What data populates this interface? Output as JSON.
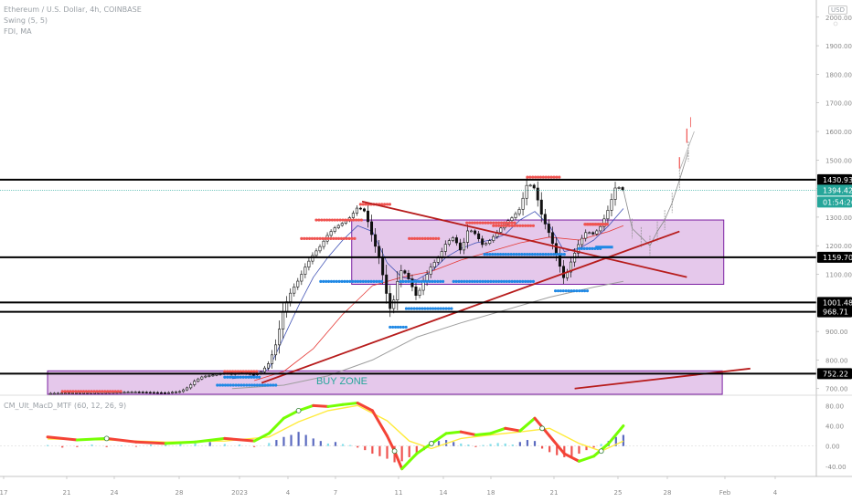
{
  "legend": {
    "symbol": "Ethereum / U.S. Dollar, 4h, COINBASE",
    "indicator1": "Swing (5, 5)",
    "indicator2": "FDI, MA",
    "macd": "CM_Ult_MacD_MTF (60, 12, 26, 9)"
  },
  "scale_badge": "USD",
  "price_axis_ticks": [
    "2000.00",
    "1900.00",
    "1800.00",
    "1700.00",
    "1600.00",
    "1500.00",
    "1400.00",
    "1300.00",
    "1200.00",
    "1100.00",
    "1000.00",
    "900.00",
    "800.00",
    "700.00"
  ],
  "macd_axis_ticks": [
    "80.00",
    "40.00",
    "0.00",
    "-40.00"
  ],
  "time_axis_ticks": [
    "17",
    "21",
    "24",
    "28",
    "2023",
    "4",
    "7",
    "11",
    "14",
    "18",
    "21",
    "25",
    "28",
    "Feb",
    "4"
  ],
  "level_labels": [
    {
      "value": "1430.93",
      "kind": "level"
    },
    {
      "value": "1394.42",
      "kind": "price"
    },
    {
      "value": "01:54:26",
      "kind": "timer"
    },
    {
      "value": "1159.70",
      "kind": "level"
    },
    {
      "value": "1001.48",
      "kind": "level"
    },
    {
      "value": "968.71",
      "kind": "level"
    },
    {
      "value": "752.22",
      "kind": "level"
    }
  ],
  "zone_label": "BUY ZONE",
  "colors": {
    "up": "#26a69a",
    "down": "#ef5350",
    "candle": "#111111",
    "zone_fill": "#e1bee7",
    "zone_stroke": "#7b1fa2",
    "trendline": "#b71c1c",
    "level": "#000000",
    "ma_fast": "#3f51b5",
    "ma_mid": "#e53935",
    "ma_slow": "#9e9e9e",
    "swing_high": "#ef5350",
    "swing_low": "#1e88e5",
    "macd_green": "#76ff03",
    "macd_red": "#f44336",
    "signal": "#ffeb3b"
  },
  "chart_data": {
    "type": "candlestick",
    "title": "",
    "price_range": [
      680,
      2060
    ],
    "macd_range": [
      -60,
      95
    ],
    "levels": [
      1430.93,
      1159.7,
      1001.48,
      968.71,
      752.22
    ],
    "current_price": 1394.42,
    "zones": [
      {
        "from_day": 7.6,
        "to_day": 32.8,
        "low": 1065,
        "high": 1290
      },
      {
        "from_day": -13,
        "to_day": 32.7,
        "low": 680,
        "high": 762
      }
    ],
    "trendlines": [
      {
        "d1": 8.3,
        "p1": 1355,
        "d2": 30.3,
        "p2": 1090
      },
      {
        "d1": 1.5,
        "p1": 720,
        "d2": 29.8,
        "p2": 1250
      },
      {
        "d1": 22.7,
        "p1": 700,
        "d2": 34.6,
        "p2": 770
      }
    ],
    "path_close": [
      [
        -13,
        683
      ],
      [
        -11,
        685
      ],
      [
        -9,
        686
      ],
      [
        -7,
        688
      ],
      [
        -5,
        685
      ],
      [
        -4,
        690
      ],
      [
        -3.5,
        704
      ],
      [
        -3,
        728
      ],
      [
        -2.5,
        742
      ],
      [
        -2,
        746
      ],
      [
        -1.5,
        750
      ],
      [
        -1,
        755
      ],
      [
        -0.5,
        749
      ],
      [
        0,
        758
      ],
      [
        0.5,
        752
      ],
      [
        1,
        748
      ],
      [
        1.5,
        760
      ],
      [
        2,
        790
      ],
      [
        2.5,
        860
      ],
      [
        3,
        980
      ],
      [
        3.5,
        1040
      ],
      [
        4,
        1080
      ],
      [
        4.5,
        1130
      ],
      [
        5,
        1170
      ],
      [
        5.5,
        1200
      ],
      [
        6,
        1240
      ],
      [
        6.5,
        1265
      ],
      [
        7,
        1280
      ],
      [
        7.5,
        1300
      ],
      [
        8,
        1335
      ],
      [
        8.5,
        1320
      ],
      [
        9,
        1230
      ],
      [
        9.5,
        1150
      ],
      [
        10,
        1020
      ],
      [
        10.3,
        960
      ],
      [
        10.6,
        1060
      ],
      [
        11,
        1120
      ],
      [
        11.5,
        1080
      ],
      [
        12,
        1020
      ],
      [
        12.5,
        1080
      ],
      [
        13,
        1130
      ],
      [
        13.5,
        1160
      ],
      [
        14,
        1210
      ],
      [
        14.5,
        1230
      ],
      [
        15,
        1180
      ],
      [
        15.5,
        1260
      ],
      [
        16,
        1240
      ],
      [
        16.5,
        1200
      ],
      [
        17,
        1220
      ],
      [
        17.5,
        1250
      ],
      [
        18,
        1280
      ],
      [
        18.5,
        1300
      ],
      [
        19,
        1330
      ],
      [
        19.5,
        1420
      ],
      [
        20,
        1400
      ],
      [
        20.5,
        1300
      ],
      [
        21,
        1240
      ],
      [
        21.5,
        1160
      ],
      [
        22,
        1080
      ],
      [
        22.5,
        1150
      ],
      [
        23,
        1210
      ],
      [
        23.5,
        1250
      ],
      [
        24,
        1240
      ],
      [
        24.5,
        1270
      ],
      [
        25,
        1330
      ],
      [
        25.5,
        1410
      ],
      [
        26,
        1394.42
      ]
    ],
    "projection": [
      [
        26,
        1394.42
      ],
      [
        26.6,
        1260
      ],
      [
        27.2,
        1230
      ],
      [
        27.8,
        1200
      ],
      [
        28.3,
        1250
      ],
      [
        28.8,
        1290
      ],
      [
        29.3,
        1350
      ],
      [
        29.8,
        1430
      ],
      [
        30.4,
        1530
      ]
    ],
    "ma_fast": [
      [
        -0.5,
        735
      ],
      [
        1,
        745
      ],
      [
        2,
        770
      ],
      [
        3,
        880
      ],
      [
        4,
        990
      ],
      [
        5,
        1090
      ],
      [
        6,
        1160
      ],
      [
        7,
        1220
      ],
      [
        8,
        1270
      ],
      [
        9,
        1250
      ],
      [
        10,
        1140
      ],
      [
        11,
        1090
      ],
      [
        12,
        1080
      ],
      [
        13,
        1110
      ],
      [
        14,
        1160
      ],
      [
        15,
        1190
      ],
      [
        16,
        1210
      ],
      [
        17,
        1220
      ],
      [
        18,
        1240
      ],
      [
        19,
        1290
      ],
      [
        20,
        1320
      ],
      [
        21,
        1270
      ],
      [
        22,
        1180
      ],
      [
        23,
        1190
      ],
      [
        24,
        1220
      ],
      [
        25,
        1270
      ],
      [
        26,
        1330
      ]
    ],
    "ma_mid": [
      [
        1,
        728
      ],
      [
        3,
        760
      ],
      [
        5,
        840
      ],
      [
        7,
        960
      ],
      [
        9,
        1060
      ],
      [
        11,
        1090
      ],
      [
        13,
        1110
      ],
      [
        15,
        1150
      ],
      [
        17,
        1180
      ],
      [
        19,
        1210
      ],
      [
        21,
        1230
      ],
      [
        23,
        1220
      ],
      [
        25,
        1250
      ],
      [
        26,
        1270
      ]
    ],
    "ma_slow": [
      [
        -0.5,
        700
      ],
      [
        3,
        712
      ],
      [
        6,
        745
      ],
      [
        9,
        800
      ],
      [
        12,
        880
      ],
      [
        15,
        930
      ],
      [
        18,
        975
      ],
      [
        21,
        1020
      ],
      [
        24,
        1055
      ],
      [
        26,
        1075
      ]
    ],
    "swing_highs": [
      {
        "from": -12,
        "to": -8,
        "price": 690
      },
      {
        "from": -1,
        "to": 1.2,
        "price": 760
      },
      {
        "from": 4.2,
        "to": 7.8,
        "price": 1225
      },
      {
        "from": 5.2,
        "to": 8.3,
        "price": 1290
      },
      {
        "from": 8.2,
        "to": 10.2,
        "price": 1345
      },
      {
        "from": 11.5,
        "to": 13.5,
        "price": 1225
      },
      {
        "from": 15.4,
        "to": 18.8,
        "price": 1280
      },
      {
        "from": 17.2,
        "to": 20,
        "price": 1270
      },
      {
        "from": 19.5,
        "to": 21.8,
        "price": 1440
      },
      {
        "from": 23.4,
        "to": 25,
        "price": 1275
      }
    ],
    "swing_lows": [
      {
        "from": -1,
        "to": 1.5,
        "price": 740
      },
      {
        "from": -1.5,
        "to": 2.5,
        "price": 712
      },
      {
        "from": 5.5,
        "to": 9.8,
        "price": 1075
      },
      {
        "from": 10.2,
        "to": 11.4,
        "price": 915
      },
      {
        "from": 10.9,
        "to": 13.9,
        "price": 1075
      },
      {
        "from": 11.3,
        "to": 14.5,
        "price": 980
      },
      {
        "from": 14.5,
        "to": 20,
        "price": 1075
      },
      {
        "from": 16.6,
        "to": 22,
        "price": 1170
      },
      {
        "from": 21.4,
        "to": 23.6,
        "price": 1042
      },
      {
        "from": 23,
        "to": 24.5,
        "price": 1190
      }
    ],
    "macd_line": [
      [
        -13,
        18
      ],
      [
        -11,
        12
      ],
      [
        -9,
        15
      ],
      [
        -7,
        8
      ],
      [
        -5,
        5
      ],
      [
        -3,
        8
      ],
      [
        -1,
        15
      ],
      [
        1,
        10
      ],
      [
        2,
        25
      ],
      [
        3,
        55
      ],
      [
        4,
        70
      ],
      [
        5,
        80
      ],
      [
        6,
        78
      ],
      [
        7,
        82
      ],
      [
        8,
        85
      ],
      [
        9,
        70
      ],
      [
        10,
        20
      ],
      [
        10.5,
        -10
      ],
      [
        11,
        -45
      ],
      [
        11.5,
        -30
      ],
      [
        12,
        -15
      ],
      [
        13,
        5
      ],
      [
        14,
        25
      ],
      [
        15,
        28
      ],
      [
        16,
        22
      ],
      [
        17,
        25
      ],
      [
        18,
        35
      ],
      [
        19,
        30
      ],
      [
        20,
        55
      ],
      [
        21,
        20
      ],
      [
        22,
        -15
      ],
      [
        23,
        -30
      ],
      [
        24,
        -20
      ],
      [
        25,
        5
      ],
      [
        26,
        40
      ]
    ],
    "macd_signal": [
      [
        -13,
        14
      ],
      [
        -9,
        12
      ],
      [
        -5,
        8
      ],
      [
        -1,
        10
      ],
      [
        2,
        18
      ],
      [
        4,
        48
      ],
      [
        6,
        70
      ],
      [
        8,
        80
      ],
      [
        10,
        50
      ],
      [
        11.5,
        10
      ],
      [
        13,
        -5
      ],
      [
        15,
        15
      ],
      [
        17,
        22
      ],
      [
        19,
        28
      ],
      [
        21,
        35
      ],
      [
        23,
        5
      ],
      [
        24.5,
        -10
      ],
      [
        26,
        10
      ]
    ],
    "macd_hist": [
      [
        -13,
        2
      ],
      [
        -12,
        -3
      ],
      [
        -11,
        -2
      ],
      [
        -10,
        3
      ],
      [
        -9,
        -2
      ],
      [
        -8,
        1
      ],
      [
        -7,
        -1
      ],
      [
        -6,
        3
      ],
      [
        -5,
        4
      ],
      [
        -4,
        6
      ],
      [
        -3,
        5
      ],
      [
        -2,
        8
      ],
      [
        -1,
        4
      ],
      [
        0,
        3
      ],
      [
        1,
        -2
      ],
      [
        2,
        6
      ],
      [
        2.5,
        12
      ],
      [
        3,
        18
      ],
      [
        3.5,
        22
      ],
      [
        4,
        28
      ],
      [
        4.5,
        22
      ],
      [
        5,
        15
      ],
      [
        5.5,
        10
      ],
      [
        6,
        5
      ],
      [
        6.5,
        8
      ],
      [
        7,
        4
      ],
      [
        7.5,
        2
      ],
      [
        8,
        -3
      ],
      [
        8.5,
        -8
      ],
      [
        9,
        -15
      ],
      [
        9.5,
        -20
      ],
      [
        10,
        -25
      ],
      [
        10.5,
        -32
      ],
      [
        11,
        -30
      ],
      [
        11.5,
        -22
      ],
      [
        12,
        -15
      ],
      [
        12.5,
        -8
      ],
      [
        13,
        5
      ],
      [
        13.5,
        10
      ],
      [
        14,
        12
      ],
      [
        14.5,
        8
      ],
      [
        15,
        5
      ],
      [
        15.5,
        3
      ],
      [
        16,
        -2
      ],
      [
        16.5,
        2
      ],
      [
        17,
        4
      ],
      [
        17.5,
        6
      ],
      [
        18,
        5
      ],
      [
        18.5,
        3
      ],
      [
        19,
        8
      ],
      [
        19.5,
        12
      ],
      [
        20,
        10
      ],
      [
        20.5,
        -5
      ],
      [
        21,
        -12
      ],
      [
        21.5,
        -18
      ],
      [
        22,
        -22
      ],
      [
        22.5,
        -20
      ],
      [
        23,
        -15
      ],
      [
        23.5,
        -8
      ],
      [
        24,
        -3
      ],
      [
        24.5,
        4
      ],
      [
        25,
        10
      ],
      [
        25.5,
        18
      ],
      [
        26,
        22
      ]
    ]
  }
}
